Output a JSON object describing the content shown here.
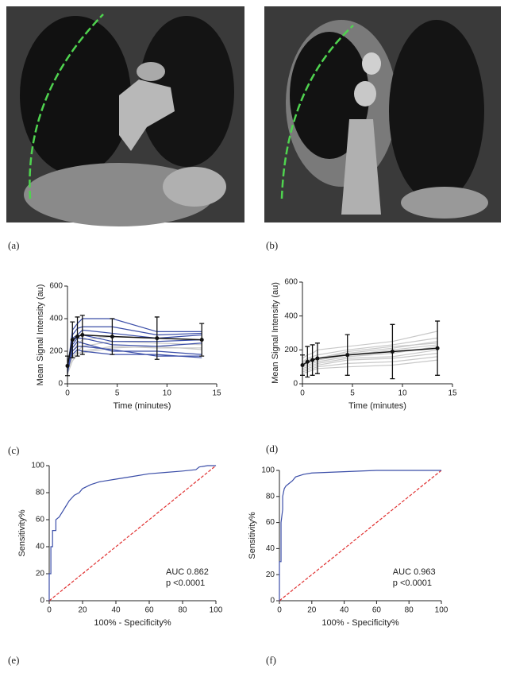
{
  "panel_labels": [
    "(a)",
    "(b)",
    "(c)",
    "(d)",
    "(e)",
    "(f)"
  ],
  "chart_data": [
    {
      "type": "line",
      "xlabel": "Time (minutes)",
      "ylabel": "Mean Signal Intensity (au)",
      "x": [
        0,
        0.5,
        1,
        1.5,
        4.5,
        9,
        13.5
      ],
      "xlim": [
        0,
        15
      ],
      "xticks": [
        0,
        5,
        10,
        15
      ],
      "ylim": [
        0,
        600
      ],
      "yticks": [
        0,
        200,
        400,
        600
      ],
      "series": [
        {
          "color": "#c8c8c8",
          "values": [
            100,
            200,
            240,
            270,
            290,
            280,
            270
          ]
        },
        {
          "color": "#c8c8c8",
          "values": [
            80,
            160,
            200,
            230,
            260,
            250,
            240
          ]
        },
        {
          "color": "#c8c8c8",
          "values": [
            60,
            140,
            180,
            200,
            230,
            220,
            220
          ]
        },
        {
          "color": "#c8c8c8",
          "values": [
            90,
            170,
            190,
            190,
            220,
            230,
            210
          ]
        },
        {
          "color": "#3b4ea8",
          "values": [
            80,
            330,
            370,
            400,
            400,
            320,
            320
          ]
        },
        {
          "color": "#3b4ea8",
          "values": [
            100,
            300,
            340,
            350,
            350,
            300,
            310
          ]
        },
        {
          "color": "#3b4ea8",
          "values": [
            120,
            280,
            300,
            330,
            310,
            280,
            300
          ]
        },
        {
          "color": "#3b4ea8",
          "values": [
            60,
            260,
            290,
            300,
            260,
            260,
            270
          ]
        },
        {
          "color": "#3b4ea8",
          "values": [
            90,
            240,
            280,
            280,
            240,
            230,
            250
          ]
        },
        {
          "color": "#3b4ea8",
          "values": [
            110,
            220,
            260,
            250,
            200,
            200,
            180
          ]
        },
        {
          "color": "#3b4ea8",
          "values": [
            70,
            200,
            230,
            230,
            210,
            170,
            170
          ]
        },
        {
          "color": "#3b4ea8",
          "values": [
            130,
            180,
            210,
            200,
            180,
            180,
            160
          ]
        },
        {
          "color": "#111111",
          "values": [
            110,
            270,
            290,
            300,
            290,
            280,
            270
          ],
          "errors": [
            60,
            110,
            120,
            120,
            110,
            130,
            100
          ]
        }
      ]
    },
    {
      "type": "line",
      "xlabel": "Time (minutes)",
      "ylabel": "Mean Signal Intensity (au)",
      "x": [
        0,
        0.5,
        1,
        1.5,
        4.5,
        9,
        13.5
      ],
      "xlim": [
        0,
        15
      ],
      "xticks": [
        0,
        5,
        10,
        15
      ],
      "ylim": [
        0,
        600
      ],
      "yticks": [
        0,
        200,
        400,
        600
      ],
      "series": [
        {
          "color": "#c8c8c8",
          "values": [
            150,
            170,
            180,
            200,
            220,
            250,
            310
          ]
        },
        {
          "color": "#c8c8c8",
          "values": [
            130,
            150,
            160,
            170,
            200,
            230,
            270
          ]
        },
        {
          "color": "#c8c8c8",
          "values": [
            120,
            140,
            150,
            150,
            180,
            210,
            250
          ]
        },
        {
          "color": "#c8c8c8",
          "values": [
            110,
            120,
            130,
            140,
            170,
            200,
            230
          ]
        },
        {
          "color": "#c8c8c8",
          "values": [
            100,
            110,
            120,
            130,
            160,
            180,
            220
          ]
        },
        {
          "color": "#c8c8c8",
          "values": [
            90,
            100,
            110,
            120,
            150,
            160,
            200
          ]
        },
        {
          "color": "#c8c8c8",
          "values": [
            80,
            90,
            100,
            110,
            140,
            150,
            180
          ]
        },
        {
          "color": "#c8c8c8",
          "values": [
            70,
            80,
            90,
            100,
            120,
            130,
            160
          ]
        },
        {
          "color": "#c8c8c8",
          "values": [
            60,
            70,
            80,
            90,
            100,
            110,
            140
          ]
        },
        {
          "color": "#c8c8c8",
          "values": [
            100,
            130,
            140,
            150,
            190,
            220,
            240
          ]
        },
        {
          "color": "#111111",
          "values": [
            110,
            130,
            140,
            150,
            170,
            190,
            210
          ],
          "errors": [
            60,
            90,
            90,
            90,
            120,
            160,
            160
          ]
        }
      ]
    },
    {
      "type": "roc",
      "xlabel": "100% - Specificity%",
      "ylabel": "Sensitivity%",
      "xlim": [
        0,
        100
      ],
      "xticks": [
        0,
        20,
        40,
        60,
        80,
        100
      ],
      "ylim": [
        0,
        100
      ],
      "yticks": [
        0,
        20,
        40,
        60,
        80,
        100
      ],
      "annotations": [
        "AUC 0.862",
        "p <0.0001"
      ],
      "series": [
        {
          "color": "#e03030",
          "dash": true,
          "x": [
            0,
            100
          ],
          "values": [
            0,
            100
          ]
        },
        {
          "color": "#3b4ea8",
          "x": [
            0,
            0,
            1,
            1,
            2,
            2,
            4,
            4,
            6,
            8,
            10,
            12,
            15,
            18,
            20,
            25,
            30,
            40,
            50,
            60,
            70,
            80,
            88,
            90,
            95,
            100
          ],
          "values": [
            0,
            20,
            20,
            40,
            40,
            52,
            52,
            60,
            62,
            66,
            70,
            74,
            78,
            80,
            83,
            86,
            88,
            90,
            92,
            94,
            95,
            96,
            97,
            99,
            100,
            100
          ]
        }
      ]
    },
    {
      "type": "roc",
      "xlabel": "100% - Specificity%",
      "ylabel": "Sensitivity%",
      "xlim": [
        0,
        100
      ],
      "xticks": [
        0,
        20,
        40,
        60,
        80,
        100
      ],
      "ylim": [
        0,
        100
      ],
      "yticks": [
        0,
        20,
        40,
        60,
        80,
        100
      ],
      "annotations": [
        "AUC 0.963",
        "p <0.0001"
      ],
      "series": [
        {
          "color": "#e03030",
          "dash": true,
          "x": [
            0,
            100
          ],
          "values": [
            0,
            100
          ]
        },
        {
          "color": "#3b4ea8",
          "x": [
            0,
            0,
            1,
            1,
            2,
            2,
            3,
            4,
            6,
            8,
            10,
            15,
            20,
            40,
            60,
            100
          ],
          "values": [
            0,
            30,
            30,
            60,
            70,
            80,
            86,
            88,
            90,
            92,
            95,
            97,
            98,
            99,
            100,
            100
          ]
        }
      ]
    }
  ]
}
